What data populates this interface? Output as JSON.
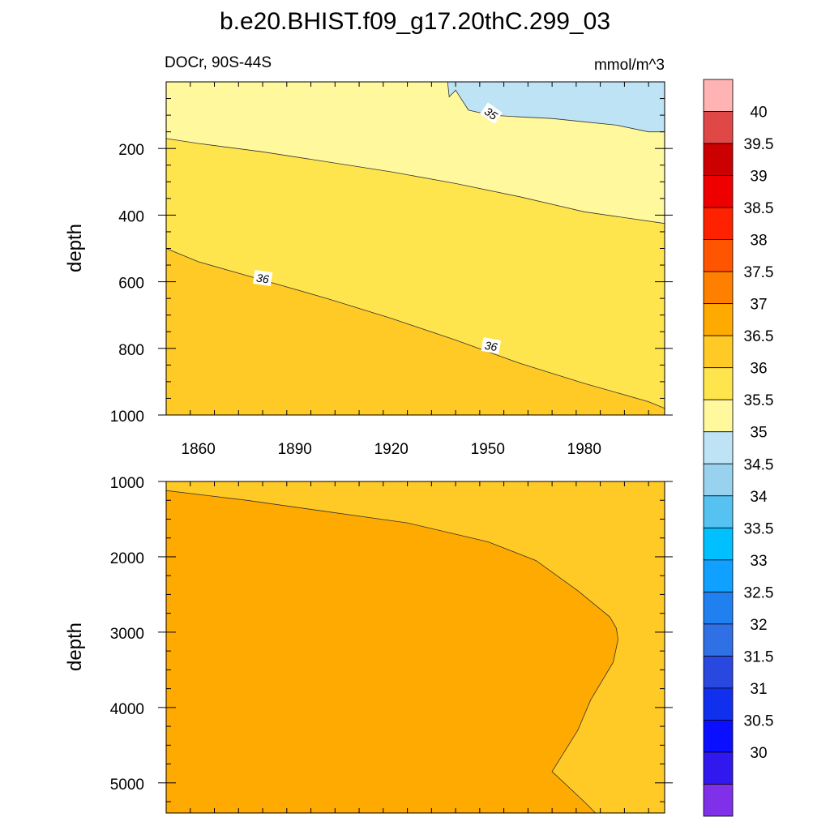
{
  "chart_data": {
    "type": "heatmap",
    "title": "b.e20.BHIST.f09_g17.20thC.299_03",
    "subtitle_left": "DOCr, 90S-44S",
    "subtitle_right": "mmol/m^3",
    "upper_panel": {
      "ylabel": "depth",
      "ylim": [
        0,
        1000
      ],
      "y_reversed": true,
      "y_ticks": [
        200,
        400,
        600,
        800,
        1000
      ],
      "x_ticks": [
        1860,
        1890,
        1920,
        1950,
        1980
      ],
      "xlim": [
        1850,
        2005
      ],
      "contour_labels": [
        "35",
        "36",
        "36"
      ],
      "regions": [
        {
          "range": "34.5-35",
          "color": "#bde3f5"
        },
        {
          "range": "35-35.5",
          "color": "#fff89c"
        },
        {
          "range": "35.5-36",
          "color": "#ffe54d"
        },
        {
          "range": "36-36.5",
          "color": "#ffc926"
        }
      ],
      "contours": [
        {
          "level": 35,
          "x": [
            1937.5,
            1938,
            1940,
            1944,
            1951,
            1960,
            1970,
            1980,
            1990,
            2000,
            2005
          ],
          "y": [
            0,
            45,
            25,
            85,
            100,
            105,
            110,
            120,
            130,
            150,
            150
          ]
        },
        {
          "level": 35.5,
          "x": [
            1850,
            1860,
            1880,
            1900,
            1920,
            1940,
            1960,
            1980,
            2005
          ],
          "y": [
            170,
            185,
            210,
            240,
            270,
            305,
            345,
            390,
            425
          ]
        },
        {
          "level": 36,
          "x": [
            1850,
            1860,
            1880,
            1900,
            1920,
            1940,
            1960,
            1980,
            2000,
            2005
          ],
          "y": [
            500,
            540,
            595,
            650,
            710,
            775,
            845,
            905,
            960,
            980
          ]
        }
      ]
    },
    "lower_panel": {
      "ylabel": "depth",
      "ylim": [
        1000,
        5400
      ],
      "y_reversed": true,
      "y_ticks": [
        1000,
        2000,
        3000,
        4000,
        5000
      ],
      "xlim": [
        1850,
        2005
      ],
      "regions": [
        {
          "range": "36-36.5",
          "color": "#ffc926"
        },
        {
          "range": "36.5-37",
          "color": "#ffaa00"
        }
      ],
      "contours": [
        {
          "level": 36.5,
          "x": [
            1850,
            1875,
            1900,
            1925,
            1950,
            1965,
            1978,
            1988,
            1990,
            1990.5,
            1989,
            1982,
            1978,
            1970,
            1980,
            1983.5
          ],
          "y": [
            1120,
            1250,
            1400,
            1550,
            1800,
            2050,
            2450,
            2800,
            2950,
            3100,
            3400,
            3900,
            4300,
            4850,
            5250,
            5400
          ]
        }
      ]
    },
    "colorbar": {
      "labels": [
        "40",
        "39.5",
        "39",
        "38.5",
        "38",
        "37.5",
        "37",
        "36.5",
        "36",
        "35.5",
        "35",
        "34.5",
        "34",
        "33.5",
        "33",
        "32.5",
        "32",
        "31.5",
        "31",
        "30.5",
        "30"
      ],
      "colors": [
        "#ffb3b3",
        "#e04848",
        "#cc0000",
        "#ee0000",
        "#ff2200",
        "#ff5500",
        "#ff7f00",
        "#ffaa00",
        "#ffc926",
        "#ffe54d",
        "#fff89c",
        "#bde3f5",
        "#99d2ee",
        "#55c2f2",
        "#00c0ff",
        "#10a0ff",
        "#2080f0",
        "#3070e5",
        "#2848e0",
        "#1030ee",
        "#0a10ff",
        "#3018ee",
        "#8030e8"
      ]
    }
  }
}
